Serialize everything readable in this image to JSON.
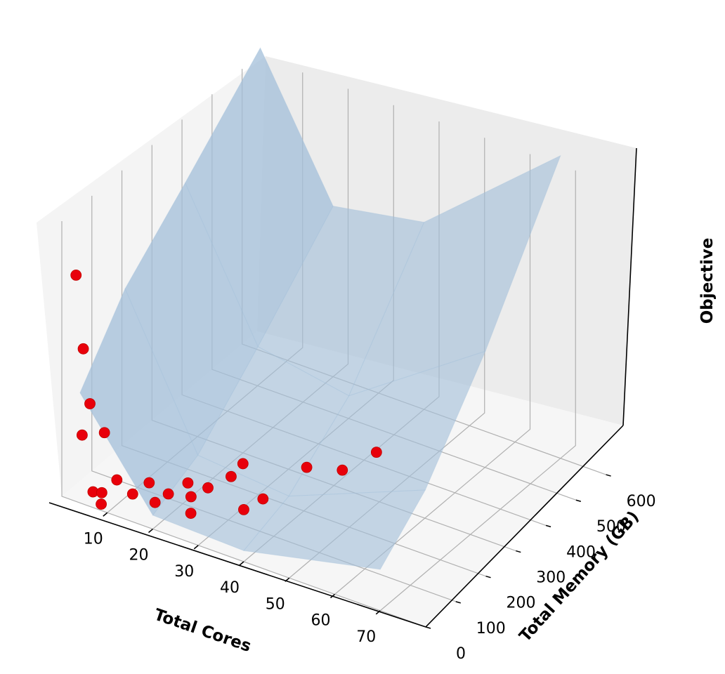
{
  "chart_data": {
    "type": "scatter",
    "projection": "3d",
    "title": "",
    "xlabel": "Total Cores",
    "ylabel": "Total Memory (GB)",
    "zlabel": "Objective",
    "xticks": [
      10,
      20,
      30,
      40,
      50,
      60,
      70
    ],
    "yticks": [
      0,
      100,
      200,
      300,
      400,
      500,
      600
    ],
    "zticks": [],
    "xlim": [
      0,
      80
    ],
    "ylim": [
      0,
      650
    ],
    "grid": true,
    "colors": {
      "points": "#e8000b",
      "surface": "#a3bfd9",
      "pane": "#f2f2f2",
      "grid": "#b0b0b0"
    },
    "series": [
      {
        "kind": "scatter",
        "points": [
          {
            "x": 2,
            "y": 17,
            "z": 0.8
          },
          {
            "x": 3,
            "y": 26,
            "z": 0.53
          },
          {
            "x": 4,
            "y": 33,
            "z": 0.33
          },
          {
            "x": 4,
            "y": 7,
            "z": 0.24
          },
          {
            "x": 6,
            "y": 51,
            "z": 0.22
          },
          {
            "x": 6,
            "y": 13,
            "z": 0.04
          },
          {
            "x": 7,
            "y": 27,
            "z": 0.03
          },
          {
            "x": 8,
            "y": 10,
            "z": 0.01
          },
          {
            "x": 8,
            "y": 62,
            "z": 0.05
          },
          {
            "x": 12,
            "y": 54,
            "z": 0.03
          },
          {
            "x": 12,
            "y": 109,
            "z": 0.02
          },
          {
            "x": 16,
            "y": 68,
            "z": 0.01
          },
          {
            "x": 18,
            "y": 82,
            "z": 0.04
          },
          {
            "x": 18,
            "y": 147,
            "z": 0.02
          },
          {
            "x": 21,
            "y": 112,
            "z": 0.02
          },
          {
            "x": 24,
            "y": 66,
            "z": 0.02
          },
          {
            "x": 24,
            "y": 123,
            "z": 0.06
          },
          {
            "x": 24,
            "y": 200,
            "z": 0.03
          },
          {
            "x": 27,
            "y": 194,
            "z": 0.1
          },
          {
            "x": 32,
            "y": 121,
            "z": 0.03
          },
          {
            "x": 32,
            "y": 185,
            "z": 0.01
          },
          {
            "x": 36,
            "y": 270,
            "z": 0.07
          },
          {
            "x": 40,
            "y": 328,
            "z": 0.03
          },
          {
            "x": 44,
            "y": 381,
            "z": 0.07
          }
        ]
      },
      {
        "kind": "surface",
        "x": [
          4,
          20,
          40,
          70
        ],
        "y": [
          0,
          150,
          350,
          600
        ],
        "z": [
          [
            0.4,
            0.64,
            0.84,
            1.1
          ],
          [
            0.05,
            0.13,
            0.34,
            0.62
          ],
          [
            0.04,
            0.1,
            0.28,
            0.68
          ],
          [
            0.15,
            0.3,
            0.62,
            1.1
          ]
        ]
      }
    ]
  }
}
